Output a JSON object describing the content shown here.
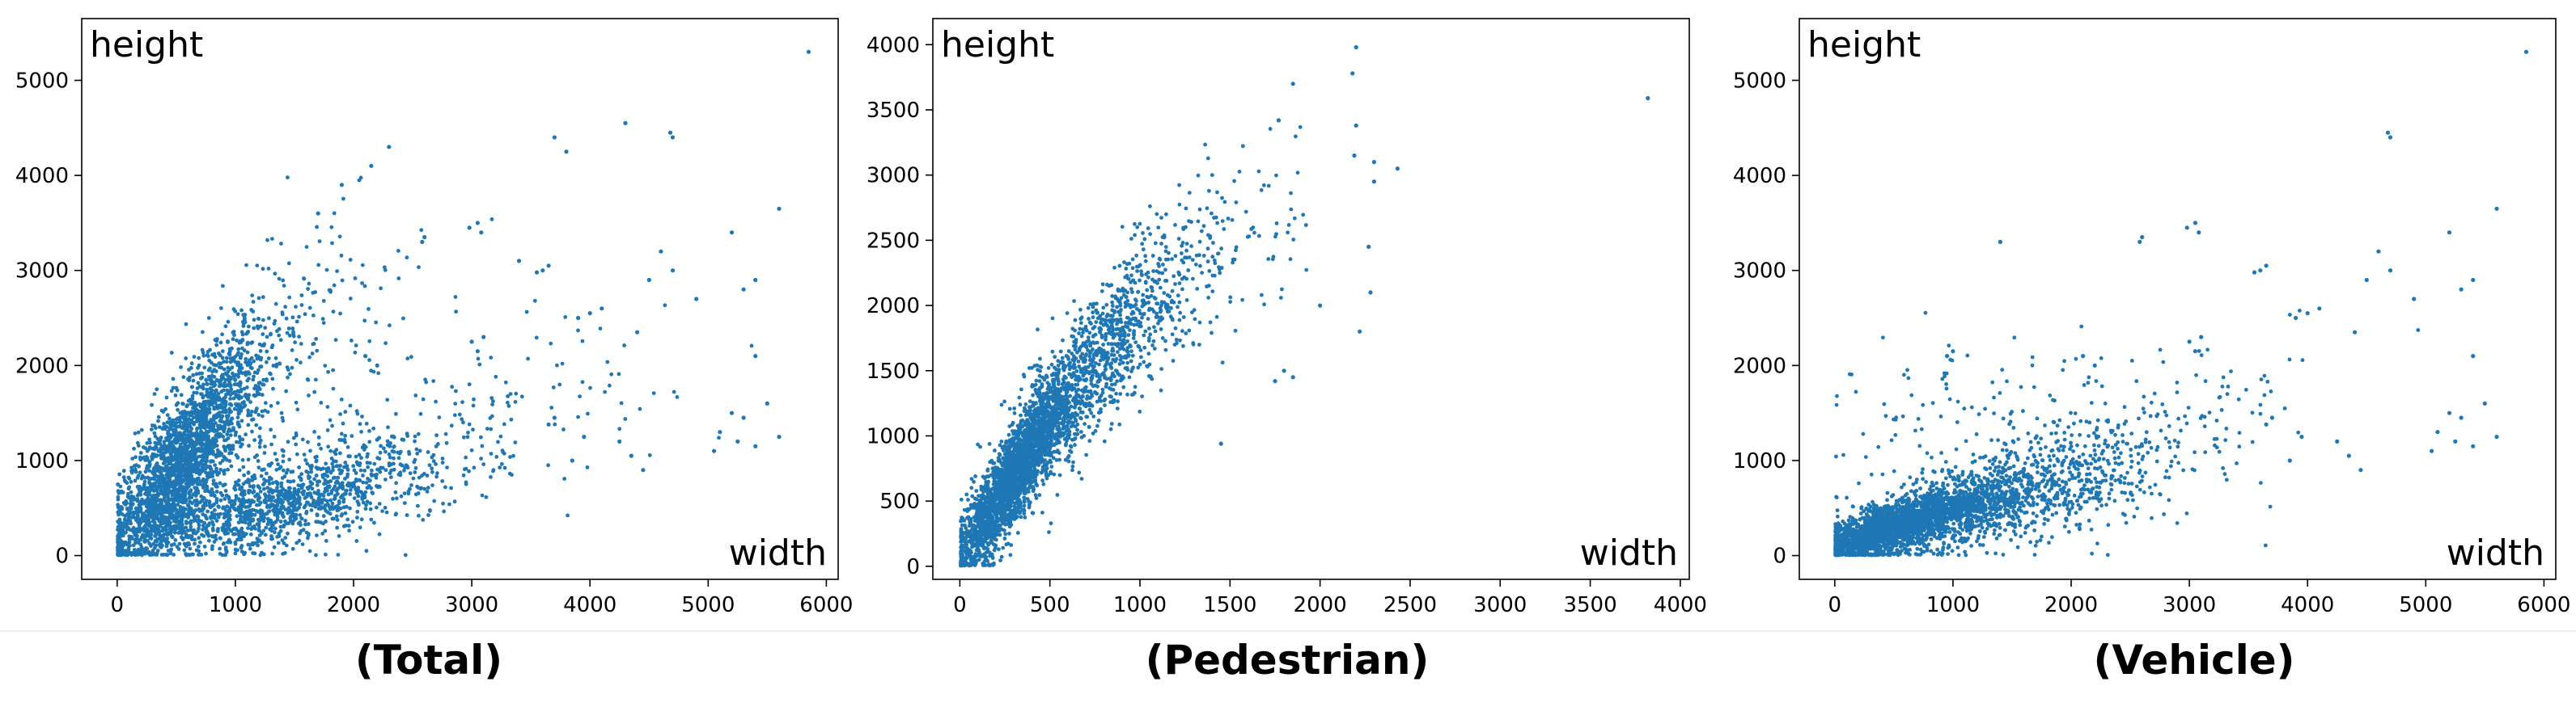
{
  "theme": {
    "point_color": "#1f77b4",
    "axis_color": "#000000"
  },
  "charts": [
    {
      "caption": "(Total)",
      "chart_data": {
        "type": "scatter",
        "title": "",
        "ylabel": "height",
        "xlabel": "width",
        "xlim": [
          -300,
          6100
        ],
        "ylim": [
          -250,
          5650
        ],
        "xticks": [
          0,
          1000,
          2000,
          3000,
          4000,
          5000,
          6000
        ],
        "yticks": [
          0,
          1000,
          2000,
          3000,
          4000,
          5000
        ],
        "grid": false,
        "series": [
          {
            "values_generated": false,
            "clusters": [
              {
                "cx": 450,
                "cy": 800,
                "sx": 260,
                "sy": 500,
                "rho": 0.7,
                "n": 1800
              },
              {
                "cx": 900,
                "cy": 1600,
                "sx": 280,
                "sy": 550,
                "rho": 0.6,
                "n": 700
              },
              {
                "cx": 1200,
                "cy": 450,
                "sx": 550,
                "sy": 230,
                "rho": 0.6,
                "n": 900
              },
              {
                "cx": 2000,
                "cy": 850,
                "sx": 650,
                "sy": 350,
                "rho": 0.5,
                "n": 450
              },
              {
                "cx": 3300,
                "cy": 1500,
                "sx": 700,
                "sy": 500,
                "rho": 0.3,
                "n": 90
              },
              {
                "cx": 1700,
                "cy": 2400,
                "sx": 450,
                "sy": 700,
                "rho": 0.4,
                "n": 120
              }
            ],
            "points": [
              [
                5850,
                5300
              ],
              [
                4700,
                4400
              ],
              [
                4680,
                4450
              ],
              [
                4300,
                4550
              ],
              [
                3700,
                4400
              ],
              [
                3800,
                4250
              ],
              [
                5600,
                3650
              ],
              [
                3050,
                3500
              ],
              [
                2980,
                3450
              ],
              [
                3080,
                3400
              ],
              [
                2600,
                3350
              ],
              [
                2580,
                3300
              ],
              [
                3600,
                3000
              ],
              [
                3650,
                3050
              ],
              [
                3550,
                2980
              ],
              [
                4600,
                3200
              ],
              [
                4700,
                3000
              ],
              [
                4500,
                2900
              ],
              [
                5200,
                3400
              ],
              [
                5400,
                2900
              ],
              [
                5300,
                2800
              ],
              [
                4900,
                2700
              ],
              [
                4400,
                2350
              ],
              [
                5400,
                2100
              ],
              [
                5500,
                1600
              ],
              [
                5200,
                1500
              ],
              [
                5300,
                1450
              ],
              [
                5100,
                1300
              ],
              [
                5250,
                1200
              ],
              [
                5400,
                1150
              ],
              [
                4000,
                2550
              ],
              [
                4100,
                2600
              ],
              [
                3900,
                2500
              ],
              [
                3400,
                3100
              ],
              [
                3700,
                1450
              ],
              [
                3650,
                1380
              ],
              [
                2300,
                4300
              ],
              [
                2150,
                4100
              ],
              [
                1900,
                3900
              ],
              [
                1700,
                3600
              ],
              [
                4250,
                1200
              ],
              [
                4350,
                1050
              ],
              [
                4450,
                900
              ],
              [
                3950,
                1250
              ],
              [
                3850,
                1000
              ],
              [
                3100,
                2300
              ],
              [
                3050,
                2150
              ],
              [
                3000,
                2250
              ],
              [
                2100,
                2100
              ],
              [
                2200,
                2000
              ],
              [
                5600,
                1250
              ],
              [
                5050,
                1100
              ]
            ]
          }
        ]
      }
    },
    {
      "caption": "(Pedestrian)",
      "chart_data": {
        "type": "scatter",
        "title": "",
        "ylabel": "height",
        "xlabel": "width",
        "xlim": [
          -150,
          4050
        ],
        "ylim": [
          -100,
          4200
        ],
        "xticks": [
          0,
          500,
          1000,
          1500,
          2000,
          2500,
          3000,
          3500,
          4000
        ],
        "yticks": [
          0,
          500,
          1000,
          1500,
          2000,
          2500,
          3000,
          3500,
          4000
        ],
        "grid": false,
        "series": [
          {
            "values_generated": false,
            "clusters": [
              {
                "cx": 300,
                "cy": 700,
                "sx": 160,
                "sy": 380,
                "rho": 0.88,
                "n": 2300
              },
              {
                "cx": 700,
                "cy": 1450,
                "sx": 220,
                "sy": 450,
                "rho": 0.82,
                "n": 900
              },
              {
                "cx": 1150,
                "cy": 2100,
                "sx": 260,
                "sy": 450,
                "rho": 0.7,
                "n": 260
              },
              {
                "cx": 1500,
                "cy": 2500,
                "sx": 280,
                "sy": 420,
                "rho": 0.5,
                "n": 60
              }
            ],
            "points": [
              [
                2200,
                3980
              ],
              [
                2180,
                3780
              ],
              [
                1850,
                3700
              ],
              [
                1770,
                3420
              ],
              [
                3820,
                3590
              ],
              [
                2200,
                3380
              ],
              [
                2190,
                3150
              ],
              [
                2300,
                3100
              ],
              [
                2430,
                3050
              ],
              [
                2300,
                2950
              ],
              [
                2270,
                2450
              ],
              [
                2280,
                2100
              ],
              [
                2220,
                1800
              ],
              [
                1850,
                1450
              ],
              [
                1800,
                1500
              ],
              [
                1750,
                1420
              ],
              [
                1450,
                940
              ],
              [
                2000,
                2000
              ]
            ]
          }
        ]
      }
    },
    {
      "caption": "(Vehicle)",
      "chart_data": {
        "type": "scatter",
        "title": "",
        "ylabel": "height",
        "xlabel": "width",
        "xlim": [
          -300,
          6100
        ],
        "ylim": [
          -250,
          5650
        ],
        "xticks": [
          0,
          1000,
          2000,
          3000,
          4000,
          5000,
          6000
        ],
        "yticks": [
          0,
          1000,
          2000,
          3000,
          4000,
          5000
        ],
        "grid": false,
        "series": [
          {
            "values_generated": false,
            "clusters": [
              {
                "cx": 450,
                "cy": 280,
                "sx": 300,
                "sy": 170,
                "rho": 0.7,
                "n": 1700
              },
              {
                "cx": 1100,
                "cy": 500,
                "sx": 450,
                "sy": 250,
                "rho": 0.6,
                "n": 1000
              },
              {
                "cx": 1900,
                "cy": 800,
                "sx": 600,
                "sy": 350,
                "rho": 0.5,
                "n": 500
              },
              {
                "cx": 2700,
                "cy": 1300,
                "sx": 800,
                "sy": 500,
                "rho": 0.4,
                "n": 120
              },
              {
                "cx": 900,
                "cy": 1500,
                "sx": 450,
                "sy": 450,
                "rho": 0.3,
                "n": 80
              }
            ],
            "points": [
              [
                5850,
                5300
              ],
              [
                4700,
                4400
              ],
              [
                4680,
                4450
              ],
              [
                3050,
                3500
              ],
              [
                2980,
                3450
              ],
              [
                3080,
                3400
              ],
              [
                2600,
                3350
              ],
              [
                2580,
                3300
              ],
              [
                3600,
                3000
              ],
              [
                3650,
                3050
              ],
              [
                3550,
                2980
              ],
              [
                4600,
                3200
              ],
              [
                4700,
                3000
              ],
              [
                4500,
                2900
              ],
              [
                5200,
                3400
              ],
              [
                5400,
                2900
              ],
              [
                5300,
                2800
              ],
              [
                4900,
                2700
              ],
              [
                4400,
                2350
              ],
              [
                5400,
                2100
              ],
              [
                5500,
                1600
              ],
              [
                5200,
                1500
              ],
              [
                5300,
                1450
              ],
              [
                5100,
                1300
              ],
              [
                5250,
                1200
              ],
              [
                5400,
                1150
              ],
              [
                4000,
                2550
              ],
              [
                4100,
                2600
              ],
              [
                3900,
                2500
              ],
              [
                3700,
                1450
              ],
              [
                3650,
                1380
              ],
              [
                4250,
                1200
              ],
              [
                4350,
                1050
              ],
              [
                4450,
                900
              ],
              [
                3950,
                1250
              ],
              [
                3850,
                1000
              ],
              [
                3100,
                2300
              ],
              [
                3050,
                2150
              ],
              [
                3000,
                2250
              ],
              [
                1400,
                3300
              ],
              [
                5600,
                3650
              ],
              [
                5600,
                1250
              ],
              [
                5050,
                1100
              ],
              [
                2100,
                2100
              ],
              [
                2200,
                2000
              ],
              [
                1000,
                2150
              ],
              [
                950,
                2100
              ]
            ]
          }
        ]
      }
    }
  ]
}
